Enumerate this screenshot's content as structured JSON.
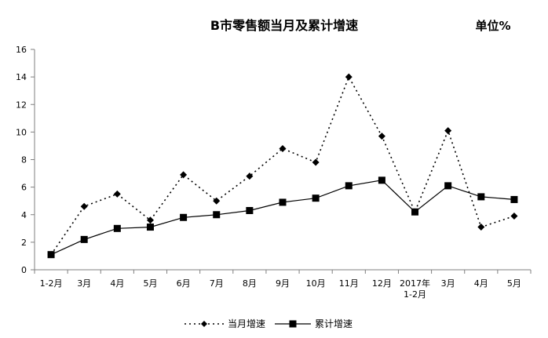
{
  "chart_data": {
    "type": "line",
    "title": "B市零售额当月及累计增速",
    "unit_label": "单位%",
    "categories": [
      "1-2月",
      "3月",
      "4月",
      "5月",
      "6月",
      "7月",
      "8月",
      "9月",
      "10月",
      "11月",
      "12月",
      "2017年\n1-2月",
      "3月",
      "4月",
      "5月"
    ],
    "ylim": [
      0,
      16
    ],
    "yticks": [
      0,
      2,
      4,
      6,
      8,
      10,
      12,
      14,
      16
    ],
    "grid": false,
    "legend_position": "bottom",
    "series": [
      {
        "name": "当月增速",
        "style": "dotted",
        "marker": "diamond",
        "values": [
          1.1,
          4.6,
          5.5,
          3.6,
          6.9,
          5.0,
          6.8,
          8.8,
          7.8,
          14.0,
          9.7,
          4.2,
          10.1,
          3.1,
          3.9
        ]
      },
      {
        "name": "累计增速",
        "style": "solid",
        "marker": "square",
        "values": [
          1.1,
          2.2,
          3.0,
          3.1,
          3.8,
          4.0,
          4.3,
          4.9,
          5.2,
          6.1,
          6.5,
          4.2,
          6.1,
          5.3,
          5.1
        ]
      }
    ],
    "colors": {
      "line": "#000000",
      "axis": "#7f7f7f"
    }
  }
}
